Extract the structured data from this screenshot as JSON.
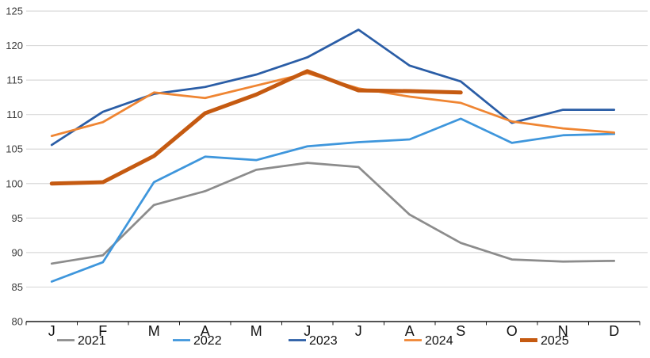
{
  "chart_data": {
    "type": "line",
    "title": "",
    "x_categories": [
      "J",
      "F",
      "M",
      "A",
      "M",
      "J",
      "J",
      "A",
      "S",
      "O",
      "N",
      "D"
    ],
    "y_axis": {
      "min": 80,
      "max": 125,
      "step": 5,
      "tick_labels": [
        "80",
        "85",
        "90",
        "95",
        "100",
        "105",
        "110",
        "115",
        "120",
        "125"
      ]
    },
    "grid": true,
    "legend_position": "bottom",
    "series": [
      {
        "name": "2021",
        "color": "#8C8C8C",
        "width": 2.75,
        "values": [
          88.4,
          89.6,
          96.9,
          98.9,
          102.0,
          103.0,
          102.4,
          95.5,
          91.4,
          89.0,
          88.7,
          88.8
        ]
      },
      {
        "name": "2022",
        "color": "#3E96DC",
        "width": 2.75,
        "values": [
          85.8,
          88.6,
          100.2,
          103.9,
          103.4,
          105.4,
          106.0,
          106.4,
          109.4,
          105.9,
          107.0,
          107.2
        ]
      },
      {
        "name": "2023",
        "color": "#2A5DA6",
        "width": 2.75,
        "values": [
          105.6,
          110.4,
          113.0,
          114.0,
          115.8,
          118.3,
          122.3,
          117.1,
          114.8,
          108.8,
          110.7,
          110.7
        ]
      },
      {
        "name": "2024",
        "color": "#EF8532",
        "width": 2.75,
        "values": [
          106.9,
          108.9,
          113.2,
          112.4,
          114.2,
          116.0,
          113.8,
          112.6,
          111.7,
          109.0,
          108.0,
          107.4
        ]
      },
      {
        "name": "2025",
        "color": "#C55A11",
        "width": 5,
        "values": [
          100.0,
          100.2,
          104.0,
          110.2,
          112.9,
          116.3,
          113.5,
          113.4,
          113.2
        ]
      }
    ]
  },
  "colors": {
    "background": "#FFFFFF",
    "gridline": "#D9D9D9",
    "axis_line": "#1A1A1A",
    "y_tick_text": "#3A3A3A",
    "x_label_text": "#111111",
    "legend_text": "#111111"
  }
}
